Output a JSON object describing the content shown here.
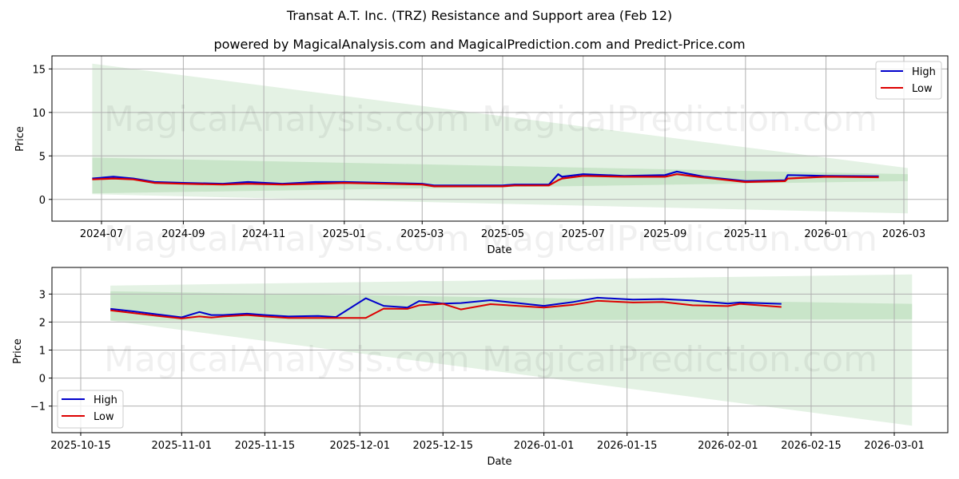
{
  "title": "Transat A.T. Inc. (TRZ) Resistance and Support area (Feb 12)",
  "subtitle": "powered by MagicalAnalysis.com and MagicalPrediction.com and Predict-Price.com",
  "watermarks": [
    "MagicalAnalysis.com",
    "MagicalPrediction.com"
  ],
  "colors": {
    "high": "#0000cc",
    "low": "#dd0000",
    "band_light": "#2e9b2e",
    "band_dark": "#2e9b2e"
  },
  "chart_data": [
    {
      "type": "line",
      "title": "Long-term view",
      "xlabel": "Date",
      "ylabel": "Price",
      "ylim": [
        -2.5,
        16.5
      ],
      "yticks": [
        "0",
        "5",
        "10",
        "15"
      ],
      "xticks": [
        "2024-07",
        "2024-09",
        "2024-11",
        "2025-01",
        "2025-03",
        "2025-05",
        "2025-07",
        "2025-09",
        "2025-11",
        "2026-01",
        "2026-03"
      ],
      "grid": true,
      "legend": {
        "position": "upper right",
        "entries": [
          "High",
          "Low"
        ]
      },
      "x": [
        "2024-06-24",
        "2024-07-10",
        "2024-07-25",
        "2024-08-10",
        "2024-09-01",
        "2024-10-01",
        "2024-10-20",
        "2024-11-15",
        "2024-12-10",
        "2025-01-01",
        "2025-02-01",
        "2025-03-01",
        "2025-03-10",
        "2025-04-01",
        "2025-05-01",
        "2025-05-10",
        "2025-06-05",
        "2025-06-12",
        "2025-06-15",
        "2025-07-01",
        "2025-08-01",
        "2025-09-01",
        "2025-09-10",
        "2025-10-01",
        "2025-11-01",
        "2025-12-01",
        "2025-12-03",
        "2026-01-01",
        "2026-02-10"
      ],
      "series": [
        {
          "name": "High",
          "values": [
            2.4,
            2.6,
            2.4,
            2.0,
            1.9,
            1.8,
            2.0,
            1.8,
            2.0,
            2.0,
            1.9,
            1.8,
            1.6,
            1.6,
            1.6,
            1.7,
            1.7,
            2.9,
            2.6,
            2.9,
            2.7,
            2.8,
            3.2,
            2.6,
            2.1,
            2.2,
            2.8,
            2.7,
            2.65
          ]
        },
        {
          "name": "Low",
          "values": [
            2.3,
            2.4,
            2.3,
            1.9,
            1.8,
            1.7,
            1.8,
            1.7,
            1.8,
            1.9,
            1.8,
            1.7,
            1.5,
            1.5,
            1.5,
            1.6,
            1.6,
            2.2,
            2.4,
            2.7,
            2.6,
            2.6,
            2.9,
            2.5,
            2.0,
            2.1,
            2.4,
            2.6,
            2.55
          ]
        }
      ],
      "bands": [
        {
          "name": "Resistance/Support wide",
          "x_start": "2024-06-24",
          "x_end": "2026-03-04",
          "upper_start": 15.6,
          "upper_end": 3.6,
          "lower_start": 0.6,
          "lower_end": -1.6
        },
        {
          "name": "Resistance/Support narrow",
          "x_start": "2024-06-24",
          "x_end": "2026-03-04",
          "upper_start": 4.8,
          "upper_end": 2.9,
          "lower_start": 0.7,
          "lower_end": 2.1
        }
      ]
    },
    {
      "type": "line",
      "title": "Short-term view",
      "xlabel": "Date",
      "ylabel": "Price",
      "ylim": [
        -1.95,
        3.95
      ],
      "yticks": [
        "-1",
        "0",
        "1",
        "2",
        "3"
      ],
      "xticks": [
        "2025-10-15",
        "2025-11-01",
        "2025-11-15",
        "2025-12-01",
        "2025-12-15",
        "2026-01-01",
        "2026-01-15",
        "2026-02-01",
        "2026-02-15",
        "2026-03-01"
      ],
      "grid": true,
      "legend": {
        "position": "lower left",
        "entries": [
          "High",
          "Low"
        ]
      },
      "x": [
        "2025-10-20",
        "2025-10-24",
        "2025-10-28",
        "2025-11-01",
        "2025-11-04",
        "2025-11-06",
        "2025-11-08",
        "2025-11-12",
        "2025-11-15",
        "2025-11-19",
        "2025-11-24",
        "2025-11-27",
        "2025-12-02",
        "2025-12-05",
        "2025-12-09",
        "2025-12-11",
        "2025-12-15",
        "2025-12-18",
        "2025-12-23",
        "2026-01-01",
        "2026-01-06",
        "2026-01-10",
        "2026-01-16",
        "2026-01-21",
        "2026-01-26",
        "2026-02-01",
        "2026-02-03",
        "2026-02-10"
      ],
      "series": [
        {
          "name": "High",
          "values": [
            2.47,
            2.38,
            2.27,
            2.17,
            2.36,
            2.25,
            2.25,
            2.3,
            2.25,
            2.2,
            2.22,
            2.18,
            2.85,
            2.58,
            2.52,
            2.75,
            2.66,
            2.68,
            2.78,
            2.58,
            2.72,
            2.87,
            2.8,
            2.82,
            2.77,
            2.66,
            2.7,
            2.65
          ]
        },
        {
          "name": "Low",
          "values": [
            2.42,
            2.32,
            2.22,
            2.13,
            2.2,
            2.16,
            2.2,
            2.25,
            2.2,
            2.15,
            2.15,
            2.15,
            2.15,
            2.48,
            2.47,
            2.6,
            2.65,
            2.45,
            2.64,
            2.52,
            2.62,
            2.76,
            2.7,
            2.72,
            2.6,
            2.57,
            2.65,
            2.54
          ]
        }
      ],
      "bands": [
        {
          "name": "Resistance/Support wide",
          "x_start": "2025-10-20",
          "x_end": "2026-03-04",
          "upper_start": 3.3,
          "upper_end": 3.7,
          "lower_start": 2.05,
          "lower_end": -1.7
        },
        {
          "name": "Resistance/Support narrow",
          "x_start": "2025-10-20",
          "x_end": "2026-03-04",
          "upper_start": 3.1,
          "upper_end": 2.65,
          "lower_start": 2.05,
          "lower_end": 2.1
        }
      ]
    }
  ]
}
